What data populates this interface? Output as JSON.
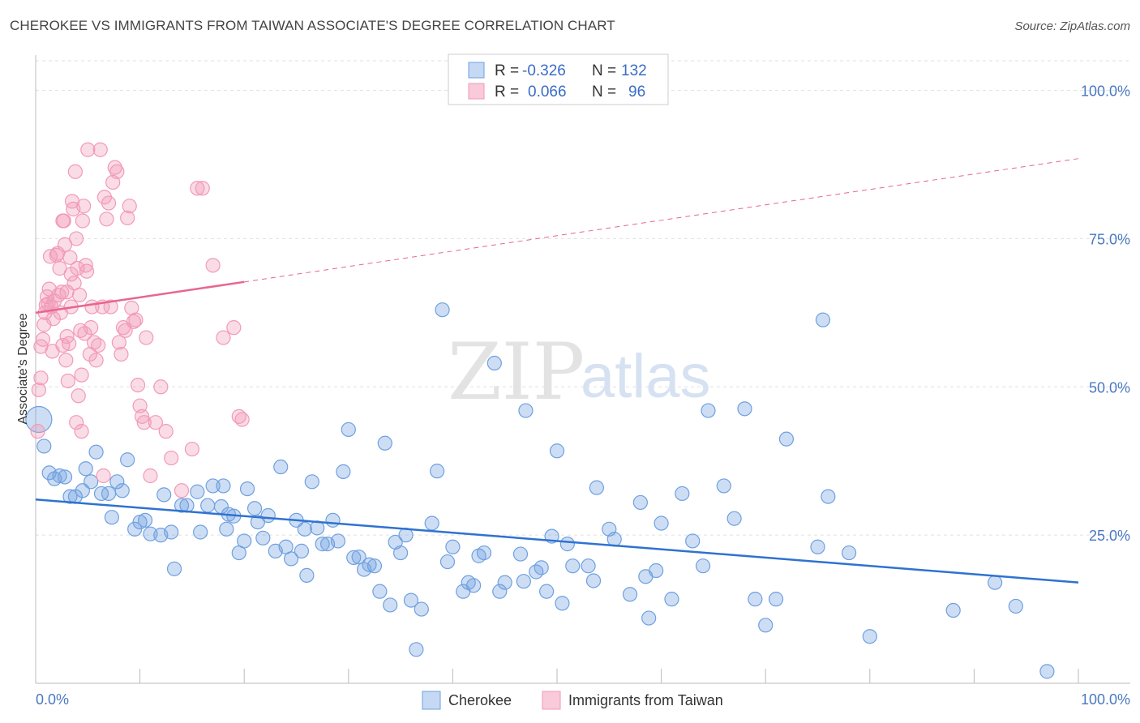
{
  "title": "CHEROKEE VS IMMIGRANTS FROM TAIWAN ASSOCIATE'S DEGREE CORRELATION CHART",
  "source": "Source: ZipAtlas.com",
  "watermark": {
    "part1": "ZIP",
    "part2": "atlas"
  },
  "chart_data": {
    "type": "scatter",
    "ylabel": "Associate's Degree",
    "xlim": [
      0,
      100
    ],
    "ylim": [
      0,
      105
    ],
    "x_tick_labels": [
      "0.0%",
      "100.0%"
    ],
    "y_ticks": [
      25,
      50,
      75,
      100
    ],
    "y_tick_labels": [
      "25.0%",
      "50.0%",
      "75.0%",
      "100.0%"
    ],
    "grid": "horizontal dashed",
    "legend_position": "top-center",
    "legend": [
      {
        "r_label": "R =",
        "r_value": "-0.326",
        "n_label": "N =",
        "n_value": "132"
      },
      {
        "r_label": "R =",
        "r_value": "0.066",
        "n_label": "N =",
        "n_value": "96"
      }
    ],
    "series": [
      {
        "name": "Cherokee",
        "color": "#6fa0e0",
        "line_color": "#2f72d0",
        "trend": {
          "x": [
            0,
            100
          ],
          "y": [
            31.0,
            17.0
          ],
          "dashed_from": null
        },
        "points": [
          [
            0.3,
            44.5
          ],
          [
            0.8,
            40
          ],
          [
            1.3,
            35.5
          ],
          [
            1.8,
            34.5
          ],
          [
            2.3,
            35
          ],
          [
            2.8,
            34.8
          ],
          [
            3.3,
            31.5
          ],
          [
            3.8,
            31.5
          ],
          [
            4.5,
            32.5
          ],
          [
            4.8,
            36.2
          ],
          [
            5.3,
            34
          ],
          [
            5.8,
            39
          ],
          [
            6.3,
            32
          ],
          [
            7.0,
            32
          ],
          [
            7.3,
            28
          ],
          [
            7.8,
            34
          ],
          [
            8.3,
            32.5
          ],
          [
            8.8,
            37.7
          ],
          [
            9.5,
            26
          ],
          [
            10,
            27.2
          ],
          [
            10.5,
            27.5
          ],
          [
            11,
            25.2
          ],
          [
            12,
            25
          ],
          [
            12.3,
            31.8
          ],
          [
            13,
            25.5
          ],
          [
            13.3,
            19.3
          ],
          [
            14,
            30
          ],
          [
            14.5,
            30
          ],
          [
            15.5,
            32.3
          ],
          [
            15.8,
            25.5
          ],
          [
            16.5,
            30
          ],
          [
            17,
            33.3
          ],
          [
            17.8,
            29.8
          ],
          [
            18,
            33.3
          ],
          [
            18.3,
            26
          ],
          [
            18.5,
            28.5
          ],
          [
            19,
            28.2
          ],
          [
            19.5,
            22
          ],
          [
            20,
            24
          ],
          [
            20.3,
            32.8
          ],
          [
            21,
            29.5
          ],
          [
            21.3,
            27.2
          ],
          [
            21.8,
            24.5
          ],
          [
            22.3,
            28.3
          ],
          [
            23,
            22.3
          ],
          [
            23.5,
            36.5
          ],
          [
            24,
            23
          ],
          [
            24.5,
            21
          ],
          [
            25,
            27.5
          ],
          [
            25.5,
            22.3
          ],
          [
            25.8,
            26
          ],
          [
            26,
            18.2
          ],
          [
            26.5,
            34
          ],
          [
            27,
            26.2
          ],
          [
            27.5,
            23.5
          ],
          [
            28,
            23.5
          ],
          [
            28.5,
            27.5
          ],
          [
            29,
            24
          ],
          [
            29.5,
            35.7
          ],
          [
            30,
            42.8
          ],
          [
            30.5,
            21.2
          ],
          [
            31,
            21.3
          ],
          [
            31.5,
            19.2
          ],
          [
            32,
            20
          ],
          [
            32.5,
            19.8
          ],
          [
            33,
            15.5
          ],
          [
            33.5,
            40.5
          ],
          [
            34,
            13.2
          ],
          [
            34.5,
            23.8
          ],
          [
            35,
            22
          ],
          [
            35.5,
            25
          ],
          [
            36,
            14.0
          ],
          [
            36.5,
            5.7
          ],
          [
            37,
            12.5
          ],
          [
            38,
            27
          ],
          [
            38.5,
            35.8
          ],
          [
            39,
            63
          ],
          [
            39.5,
            20.5
          ],
          [
            40,
            23
          ],
          [
            41,
            15.5
          ],
          [
            41.5,
            17
          ],
          [
            42,
            16.5
          ],
          [
            42.5,
            21.5
          ],
          [
            43,
            22
          ],
          [
            44,
            54
          ],
          [
            44.5,
            15.5
          ],
          [
            45,
            17
          ],
          [
            46.5,
            21.8
          ],
          [
            46.8,
            17.2
          ],
          [
            47,
            46
          ],
          [
            48,
            18.8
          ],
          [
            48.5,
            19.5
          ],
          [
            49,
            15.5
          ],
          [
            49.5,
            24.8
          ],
          [
            50,
            39.2
          ],
          [
            50.5,
            13.5
          ],
          [
            51,
            23.5
          ],
          [
            51.5,
            19.8
          ],
          [
            53,
            19.8
          ],
          [
            53.5,
            17.3
          ],
          [
            53.8,
            33
          ],
          [
            55,
            26
          ],
          [
            55.5,
            24.3
          ],
          [
            57,
            15
          ],
          [
            58,
            30.5
          ],
          [
            58.5,
            18
          ],
          [
            58.8,
            11
          ],
          [
            59.5,
            19
          ],
          [
            60,
            27
          ],
          [
            61,
            14.2
          ],
          [
            62,
            32
          ],
          [
            63,
            24
          ],
          [
            64,
            19.8
          ],
          [
            64.5,
            46
          ],
          [
            66,
            33.3
          ],
          [
            67,
            27.8
          ],
          [
            68,
            46.3
          ],
          [
            69,
            14.2
          ],
          [
            70,
            9.8
          ],
          [
            71,
            14.2
          ],
          [
            72,
            41.2
          ],
          [
            75,
            23
          ],
          [
            75.5,
            61.3
          ],
          [
            76,
            31.5
          ],
          [
            78,
            22
          ],
          [
            80,
            7.9
          ],
          [
            88,
            12.3
          ],
          [
            92,
            17
          ],
          [
            94,
            13
          ],
          [
            97,
            2
          ]
        ]
      },
      {
        "name": "Immigrants from Taiwan",
        "color": "#f29ab7",
        "line_color": "#e8668e",
        "trend": {
          "x": [
            0,
            100
          ],
          "y": [
            62.5,
            88.5
          ],
          "dashed_from": 20
        },
        "points": [
          [
            0.2,
            42.5
          ],
          [
            0.3,
            49.5
          ],
          [
            0.5,
            51.5
          ],
          [
            0.5,
            56.8
          ],
          [
            0.7,
            58
          ],
          [
            0.8,
            60.5
          ],
          [
            0.9,
            62.5
          ],
          [
            1.0,
            63.8
          ],
          [
            1.1,
            65.2
          ],
          [
            1.2,
            64
          ],
          [
            1.3,
            66.5
          ],
          [
            1.4,
            72
          ],
          [
            1.5,
            63.5
          ],
          [
            1.6,
            56
          ],
          [
            1.7,
            61.5
          ],
          [
            1.8,
            64.5
          ],
          [
            2.0,
            72.2
          ],
          [
            2.1,
            72.5
          ],
          [
            2.3,
            70
          ],
          [
            2.4,
            62.5
          ],
          [
            2.5,
            66
          ],
          [
            2.6,
            78
          ],
          [
            2.7,
            78
          ],
          [
            2.8,
            74
          ],
          [
            2.9,
            54.5
          ],
          [
            3.0,
            66
          ],
          [
            3.1,
            51
          ],
          [
            3.2,
            57.3
          ],
          [
            3.3,
            71.8
          ],
          [
            3.4,
            63.5
          ],
          [
            3.5,
            81.3
          ],
          [
            3.6,
            80
          ],
          [
            3.7,
            67.5
          ],
          [
            3.8,
            86.3
          ],
          [
            3.9,
            75
          ],
          [
            4.0,
            70
          ],
          [
            4.1,
            48.5
          ],
          [
            4.2,
            65.5
          ],
          [
            4.3,
            59.5
          ],
          [
            4.4,
            42.5
          ],
          [
            4.5,
            78
          ],
          [
            4.6,
            80.5
          ],
          [
            4.7,
            59
          ],
          [
            4.8,
            70.5
          ],
          [
            4.9,
            69.5
          ],
          [
            5.0,
            90
          ],
          [
            5.2,
            55.5
          ],
          [
            5.4,
            63.5
          ],
          [
            5.6,
            57.5
          ],
          [
            5.8,
            54.5
          ],
          [
            6.0,
            57
          ],
          [
            6.2,
            90
          ],
          [
            6.4,
            63.5
          ],
          [
            6.6,
            82
          ],
          [
            6.8,
            78.3
          ],
          [
            7.0,
            81
          ],
          [
            7.2,
            63.5
          ],
          [
            7.4,
            84.5
          ],
          [
            7.6,
            87
          ],
          [
            7.8,
            86.3
          ],
          [
            8.0,
            57.5
          ],
          [
            8.2,
            55.5
          ],
          [
            8.4,
            60
          ],
          [
            8.6,
            59.5
          ],
          [
            8.8,
            78.5
          ],
          [
            9.0,
            80.5
          ],
          [
            9.2,
            63.3
          ],
          [
            9.4,
            61
          ],
          [
            9.6,
            61.3
          ],
          [
            9.8,
            50.3
          ],
          [
            10.0,
            46.8
          ],
          [
            10.2,
            45
          ],
          [
            10.4,
            44
          ],
          [
            10.6,
            58.3
          ],
          [
            11,
            35
          ],
          [
            11.5,
            44
          ],
          [
            12,
            50
          ],
          [
            12.5,
            42.5
          ],
          [
            13,
            38
          ],
          [
            14,
            32.5
          ],
          [
            15,
            39.5
          ],
          [
            15.5,
            83.5
          ],
          [
            16,
            83.5
          ],
          [
            17,
            70.5
          ],
          [
            18,
            58.3
          ],
          [
            19,
            60
          ],
          [
            19.5,
            45
          ],
          [
            19.8,
            44.5
          ],
          [
            2.2,
            65.5
          ],
          [
            2.6,
            57
          ],
          [
            3.0,
            58.5
          ],
          [
            3.4,
            69
          ],
          [
            3.9,
            44
          ],
          [
            4.4,
            52
          ],
          [
            6.5,
            35
          ],
          [
            5.3,
            60
          ]
        ]
      }
    ]
  }
}
